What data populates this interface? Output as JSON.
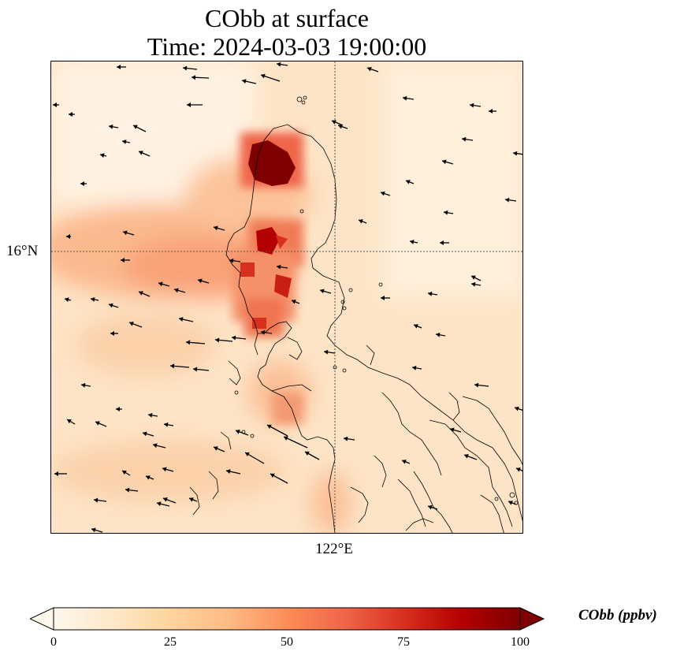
{
  "title": {
    "line1": "CObb at surface",
    "line2": "Time: 2024-03-03 19:00:00"
  },
  "map": {
    "lat_label": "16°N",
    "lon_label": "122°E",
    "colormap": [
      "#fff7ec",
      "#fee8c8",
      "#fdd49e",
      "#fdbb84",
      "#fc8d59",
      "#ef6548",
      "#d7301f",
      "#b30000",
      "#7f0000"
    ]
  },
  "colorbar": {
    "label": "CObb (ppbv)",
    "ticks": [
      "0",
      "25",
      "50",
      "75",
      "100"
    ],
    "range": [
      0,
      100
    ]
  }
}
